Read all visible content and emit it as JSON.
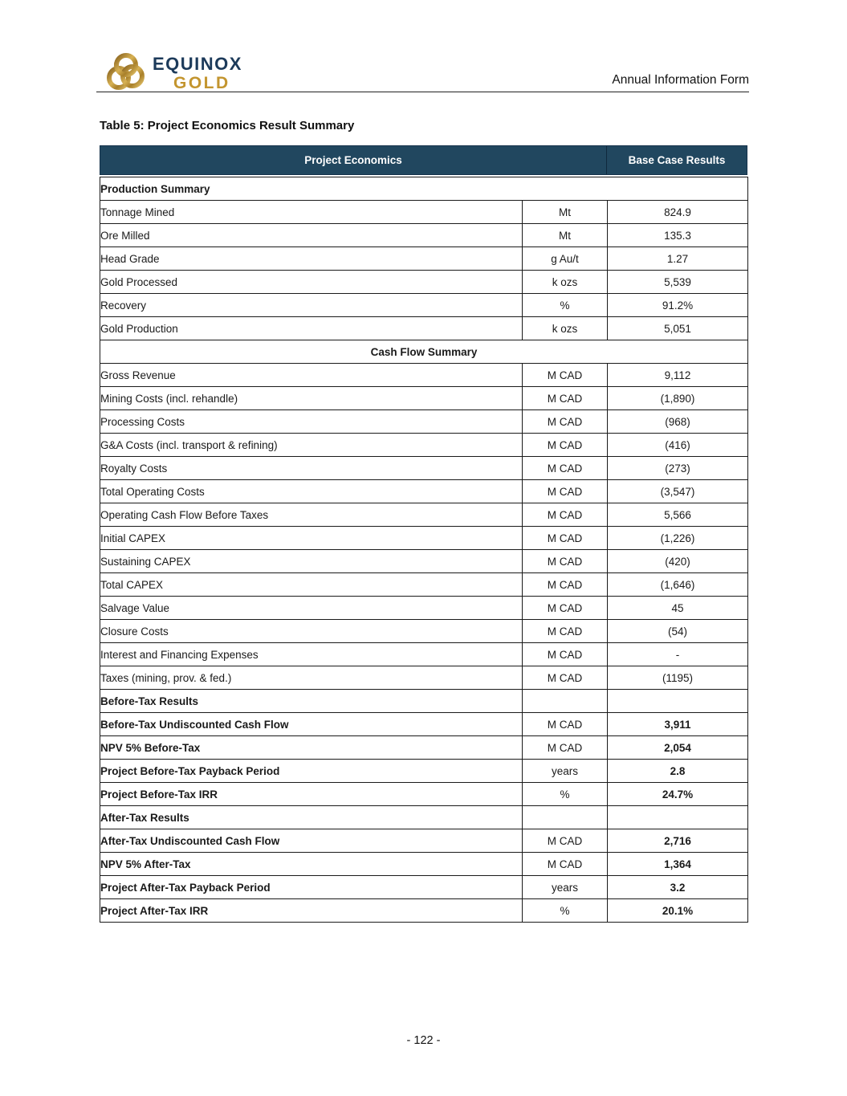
{
  "header": {
    "logo": {
      "line1": "EQUINOX",
      "line2": "GOLD",
      "emblem": "interlocking-rings-icon"
    },
    "doc_label": "Annual Information Form"
  },
  "title": "Table 5: Project Economics Result Summary",
  "colors": {
    "header_bg": "#21475f",
    "section_bg": "#d9d9d9",
    "navy_text": "#1c3a5a",
    "gold": "#c3952f",
    "border": "#1a1a1a"
  },
  "table": {
    "header": {
      "main": "Project Economics",
      "result": "Base Case Results"
    },
    "rows": [
      {
        "type": "section",
        "align": "left",
        "label": "Production Summary"
      },
      {
        "type": "data",
        "label": "Tonnage Mined",
        "unit": "Mt",
        "value": "824.9"
      },
      {
        "type": "data",
        "label": "Ore Milled",
        "unit": "Mt",
        "value": "135.3"
      },
      {
        "type": "data",
        "label": "Head Grade",
        "unit": "g Au/t",
        "value": "1.27"
      },
      {
        "type": "data",
        "label": "Gold Processed",
        "unit": "k ozs",
        "value": "5,539"
      },
      {
        "type": "data",
        "label": "Recovery",
        "unit": "%",
        "value": "91.2%"
      },
      {
        "type": "data",
        "label": "Gold Production",
        "unit": "k ozs",
        "value": "5,051"
      },
      {
        "type": "section",
        "align": "center",
        "label": "Cash Flow Summary"
      },
      {
        "type": "data",
        "label": "Gross Revenue",
        "unit": "M CAD",
        "value": "9,112"
      },
      {
        "type": "data",
        "label": "Mining Costs (incl. rehandle)",
        "unit": "M CAD",
        "value": "(1,890)"
      },
      {
        "type": "data",
        "label": "Processing Costs",
        "unit": "M CAD",
        "value": "(968)"
      },
      {
        "type": "data",
        "label": "G&A Costs (incl. transport & refining)",
        "unit": "M CAD",
        "value": "(416)"
      },
      {
        "type": "data",
        "label": "Royalty Costs",
        "unit": "M CAD",
        "value": "(273)"
      },
      {
        "type": "data",
        "label": "Total Operating Costs",
        "unit": "M CAD",
        "value": "(3,547)"
      },
      {
        "type": "data",
        "label": "Operating Cash Flow Before Taxes",
        "unit": "M CAD",
        "value": "5,566"
      },
      {
        "type": "data",
        "label": "Initial CAPEX",
        "unit": "M CAD",
        "value": "(1,226)"
      },
      {
        "type": "data",
        "label": "Sustaining CAPEX",
        "unit": "M CAD",
        "value": "(420)"
      },
      {
        "type": "data",
        "label": "Total CAPEX",
        "unit": "M CAD",
        "value": "(1,646)"
      },
      {
        "type": "data",
        "label": "Salvage Value",
        "unit": "M CAD",
        "value": "45"
      },
      {
        "type": "data",
        "label": "Closure Costs",
        "unit": "M CAD",
        "value": "(54)"
      },
      {
        "type": "data",
        "label": "Interest and Financing Expenses",
        "unit": "M CAD",
        "value": "-"
      },
      {
        "type": "data",
        "label": "Taxes (mining, prov. & fed.)",
        "unit": "M CAD",
        "value": "(1195)"
      },
      {
        "type": "section-cells",
        "label": "Before-Tax Results"
      },
      {
        "type": "data-bold",
        "label": "Before-Tax Undiscounted Cash Flow",
        "unit": "M CAD",
        "value": "3,911"
      },
      {
        "type": "data-bold",
        "label": "NPV 5% Before-Tax",
        "unit": "M CAD",
        "value": "2,054"
      },
      {
        "type": "data-bold",
        "label": "Project Before-Tax Payback Period",
        "unit": "years",
        "value": "2.8"
      },
      {
        "type": "data-bold",
        "label": "Project Before-Tax IRR",
        "unit": "%",
        "value": "24.7%"
      },
      {
        "type": "section-cells",
        "label": "After-Tax Results"
      },
      {
        "type": "data-bold",
        "label": "After-Tax Undiscounted Cash Flow",
        "unit": "M CAD",
        "value": "2,716"
      },
      {
        "type": "data-bold",
        "label": "NPV 5% After-Tax",
        "unit": "M CAD",
        "value": "1,364"
      },
      {
        "type": "data-bold",
        "label": "Project After-Tax Payback Period",
        "unit": "years",
        "value": "3.2"
      },
      {
        "type": "data-bold",
        "label": "Project After-Tax IRR",
        "unit": "%",
        "value": "20.1%"
      }
    ]
  },
  "footer": {
    "page_number": "- 122 -"
  }
}
